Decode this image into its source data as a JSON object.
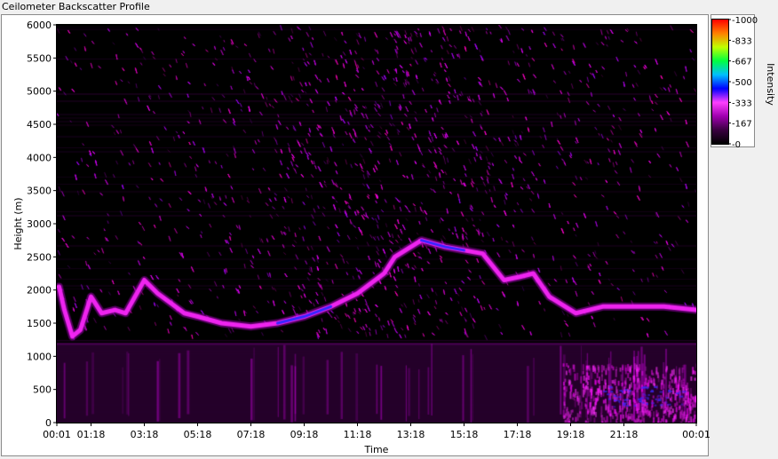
{
  "window": {
    "title": "Ceilometer Backscatter Profile"
  },
  "chart_data": {
    "type": "heatmap",
    "title": "Ceilometer Backscatter Profile",
    "xlabel": "Time",
    "ylabel": "Height (m)",
    "x_ticks": [
      "00:01",
      "01:18",
      "03:18",
      "05:18",
      "07:18",
      "09:18",
      "11:18",
      "13:18",
      "15:18",
      "17:18",
      "19:18",
      "21:18",
      "00:01"
    ],
    "x_tick_hours": [
      0.017,
      1.3,
      3.3,
      5.3,
      7.3,
      9.3,
      11.3,
      13.3,
      15.3,
      17.3,
      19.3,
      21.3,
      24.017
    ],
    "xlim_hours": [
      0.017,
      24.017
    ],
    "y_ticks": [
      0,
      500,
      1000,
      1500,
      2000,
      2500,
      3000,
      3500,
      4000,
      4500,
      5000,
      5500,
      6000
    ],
    "ylim": [
      0,
      6000
    ],
    "colorbar": {
      "label": "Intensity",
      "ticks": [
        "-1000",
        "-833",
        "-667",
        "-500",
        "-333",
        "-167",
        "-0"
      ],
      "tick_values": [
        1000,
        833,
        667,
        500,
        333,
        167,
        0
      ],
      "range": [
        0,
        1000
      ],
      "colors": [
        "#000000",
        "#3a0040",
        "#a000b0",
        "#ff40ff",
        "#0000ff",
        "#00c0ff",
        "#00ff40",
        "#c0ff00",
        "#ff8000",
        "#ff0000"
      ]
    },
    "background_color": "#000000",
    "cloud_layer_series": [
      {
        "name": "",
        "points": [
          [
            0.1,
            2050
          ],
          [
            0.3,
            1700
          ],
          [
            0.6,
            1300
          ],
          [
            0.9,
            1400
          ],
          [
            1.3,
            1900
          ],
          [
            1.7,
            1650
          ],
          [
            2.2,
            1700
          ],
          [
            2.6,
            1650
          ],
          [
            3.3,
            2150
          ],
          [
            3.8,
            1950
          ],
          [
            4.3,
            1800
          ],
          [
            4.8,
            1650
          ],
          [
            5.3,
            1600
          ],
          [
            6.2,
            1500
          ],
          [
            7.3,
            1450
          ],
          [
            8.3,
            1500
          ],
          [
            9.3,
            1600
          ],
          [
            10.3,
            1750
          ],
          [
            11.3,
            1950
          ],
          [
            12.3,
            2250
          ],
          [
            12.7,
            2500
          ],
          [
            13.7,
            2750
          ],
          [
            14.6,
            2650
          ],
          [
            15.3,
            2600
          ],
          [
            16.0,
            2550
          ],
          [
            16.8,
            2150
          ],
          [
            17.4,
            2200
          ],
          [
            17.9,
            2250
          ],
          [
            18.5,
            1900
          ],
          [
            19.5,
            1650
          ],
          [
            20.5,
            1750
          ],
          [
            22.8,
            1750
          ],
          [
            24.0,
            1700
          ]
        ]
      }
    ],
    "low_level_intensity_hours": [
      [
        19.0,
        24.0
      ]
    ]
  }
}
